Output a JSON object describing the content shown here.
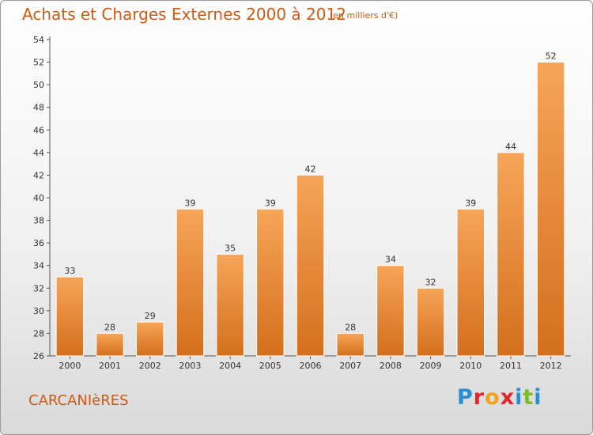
{
  "header": {
    "title": "Achats et Charges Externes 2000 à 2012",
    "subtitle": "(en milliers d'€)"
  },
  "footer": {
    "commune": "CARCANIèRES",
    "logo_letters": [
      "P",
      "r",
      "o",
      "x",
      "i",
      "t",
      "i"
    ],
    "logo_colors": [
      "#2a8fd0",
      "#e3262b",
      "#f2a11c",
      "#e3262b",
      "#2a8fd0",
      "#7cbc2a",
      "#2a8fd0"
    ]
  },
  "chart_data": {
    "type": "bar",
    "categories": [
      "2000",
      "2001",
      "2002",
      "2003",
      "2004",
      "2005",
      "2006",
      "2007",
      "2008",
      "2009",
      "2010",
      "2011",
      "2012"
    ],
    "values": [
      33,
      28,
      29,
      39,
      35,
      39,
      42,
      28,
      34,
      32,
      39,
      44,
      52
    ],
    "ylim": [
      26,
      54
    ],
    "ytick_step": 2,
    "grid": false,
    "bar_color_light": "#f6a558",
    "bar_color_dark": "#d46f1c"
  }
}
